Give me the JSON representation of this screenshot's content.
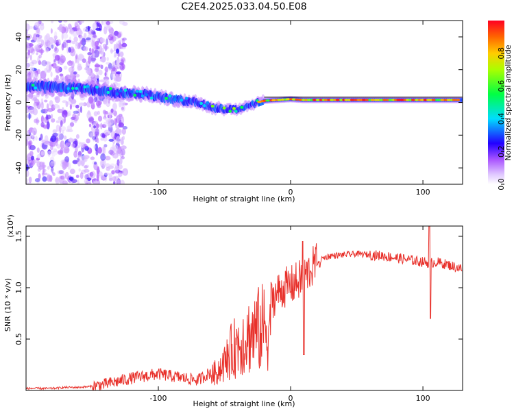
{
  "figure": {
    "title": "C2E4.2025.033.04.50.E08"
  },
  "chart_data": [
    {
      "type": "heatmap",
      "xlabel": "Height of straight line (km)",
      "ylabel": "Frequency (Hz)",
      "xlim": [
        -200,
        130
      ],
      "ylim": [
        -50,
        50
      ],
      "xticks": [
        -100,
        0,
        100
      ],
      "yticks": [
        -40,
        -20,
        0,
        20,
        40
      ],
      "ridge": {
        "x": [
          -200,
          -170,
          -150,
          -130,
          -110,
          -90,
          -70,
          -60,
          -50,
          -40,
          -30,
          -25,
          -20,
          -10,
          0,
          10,
          20,
          40,
          60,
          80,
          100,
          120,
          130
        ],
        "y": [
          10,
          9,
          8,
          6,
          5,
          2,
          0,
          -3,
          -4,
          -4,
          -2,
          0,
          1,
          1.5,
          2,
          1.5,
          1.5,
          1.5,
          1.5,
          1.5,
          1.5,
          1.5,
          1.5
        ]
      },
      "colorbar": {
        "label": "Normalized spectral amplitude",
        "range": [
          0,
          1
        ],
        "ticks": [
          "0.0",
          "0.2",
          "0.4",
          "0.6",
          "0.8"
        ],
        "colors": [
          "#ffffff",
          "#cc99ff",
          "#8800ff",
          "#0000ff",
          "#00ffff",
          "#00ff00",
          "#ffff00",
          "#ff8800",
          "#ff0000"
        ]
      },
      "grid": false
    },
    {
      "type": "line",
      "xlabel": "Height of straight line (km)",
      "ylabel": "SNR (10 * v/v)",
      "multiplier": "(x10⁴)",
      "xlim": [
        -200,
        130
      ],
      "ylim": [
        0,
        1.6
      ],
      "xticks": [
        -100,
        0,
        100
      ],
      "yticks": [
        "0.5",
        "1.0",
        "1.5"
      ],
      "color": "#e8302a",
      "series": [
        {
          "x": [
            -200,
            -190,
            -180,
            -170,
            -160,
            -150,
            -140,
            -130,
            -120,
            -110,
            -100,
            -90,
            -80,
            -70,
            -60,
            -50,
            -45,
            -40,
            -35,
            -30,
            -25,
            -20,
            -15,
            -10,
            -5,
            0,
            5,
            10,
            15,
            20,
            25,
            30,
            40,
            50,
            60,
            70,
            80,
            90,
            100,
            105,
            110,
            120,
            130
          ],
          "y": [
            0.02,
            0.02,
            0.02,
            0.03,
            0.03,
            0.04,
            0.06,
            0.09,
            0.12,
            0.14,
            0.16,
            0.14,
            0.12,
            0.1,
            0.18,
            0.35,
            0.5,
            0.6,
            0.68,
            0.72,
            0.78,
            0.82,
            0.88,
            0.95,
            1.0,
            1.02,
            1.06,
            1.1,
            1.18,
            1.25,
            1.29,
            1.31,
            1.32,
            1.33,
            1.32,
            1.31,
            1.29,
            1.27,
            1.25,
            1.24,
            1.25,
            1.22,
            1.18
          ]
        }
      ],
      "grid": false
    }
  ]
}
